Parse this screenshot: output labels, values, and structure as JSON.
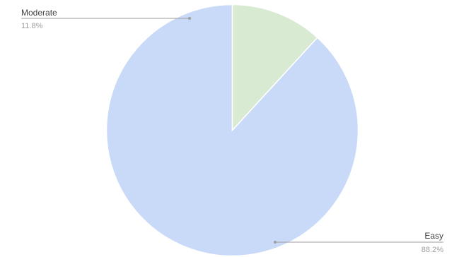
{
  "chart_data": {
    "type": "pie",
    "slices": [
      {
        "label": "Easy",
        "percent_label": "88.2%",
        "value": 88.2,
        "color": "#c9daf8"
      },
      {
        "label": "Moderate",
        "percent_label": "11.8%",
        "value": 11.8,
        "color": "#d9ead3"
      }
    ],
    "start_angle": "12 o'clock",
    "direction": "counter-clockwise",
    "legend": "none",
    "label_style": "external leader lines"
  }
}
